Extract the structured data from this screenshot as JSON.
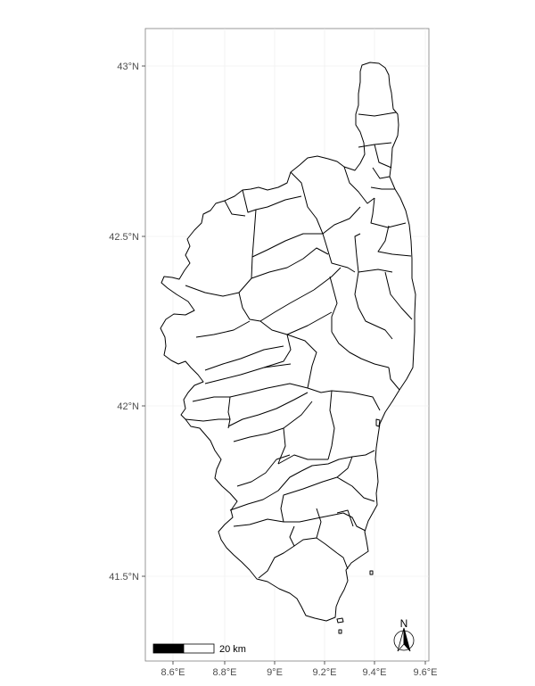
{
  "map": {
    "x_ticks": [
      "8.6°E",
      "8.8°E",
      "9°E",
      "9.2°E",
      "9.4°E",
      "9.6°E"
    ],
    "y_ticks": [
      "43°N",
      "42.5°N",
      "42°N",
      "41.5°N"
    ],
    "scale_bar_label": "20 km",
    "north_arrow_label": "N"
  }
}
